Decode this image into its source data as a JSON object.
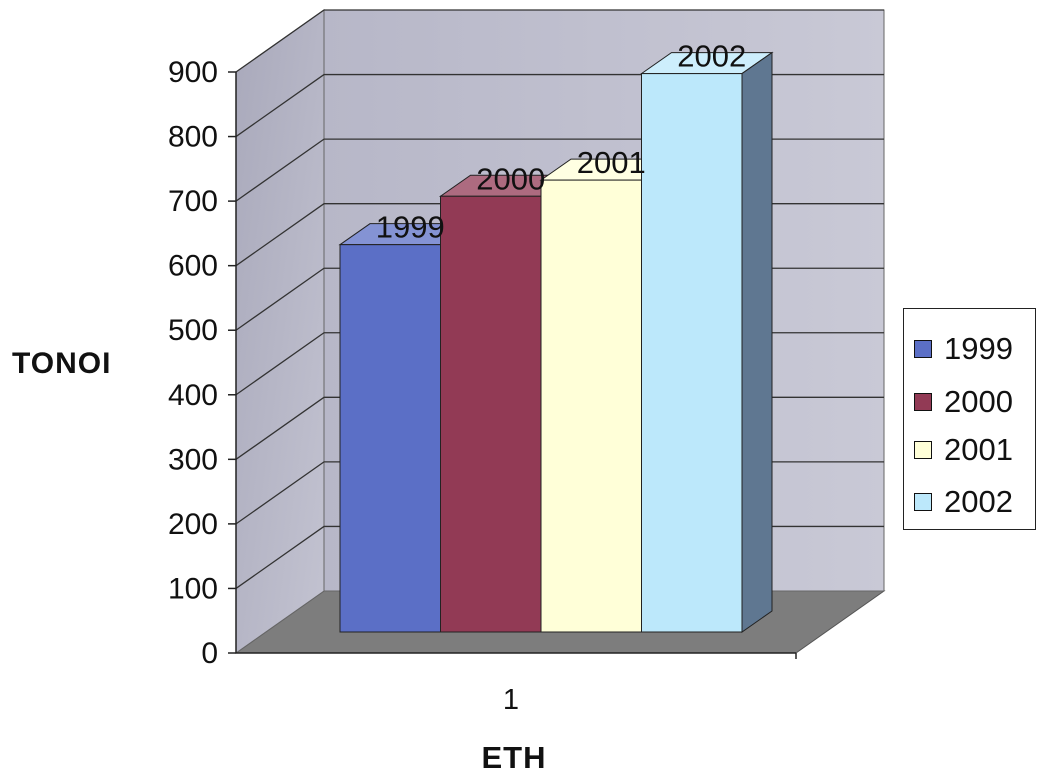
{
  "chart_data": {
    "type": "bar",
    "categories": [
      "1"
    ],
    "series": [
      {
        "name": "1999",
        "values": [
          600
        ],
        "color": "#5b6fc6"
      },
      {
        "name": "2000",
        "values": [
          675
        ],
        "color": "#923a55"
      },
      {
        "name": "2001",
        "values": [
          700
        ],
        "color": "#ffffd8"
      },
      {
        "name": "2002",
        "values": [
          865
        ],
        "color": "#bce8fb"
      }
    ],
    "data_labels": [
      "1999",
      "2000",
      "2001",
      "2002"
    ],
    "title": "",
    "xlabel": "ΕΤΗ",
    "ylabel": "ΤΟΝΟΙ",
    "ylim": [
      0,
      900
    ],
    "yticks": [
      "0",
      "100",
      "200",
      "300",
      "400",
      "500",
      "600",
      "700",
      "800",
      "900"
    ],
    "grid": true,
    "style": "3d-clustered-column",
    "legend_position": "right"
  }
}
